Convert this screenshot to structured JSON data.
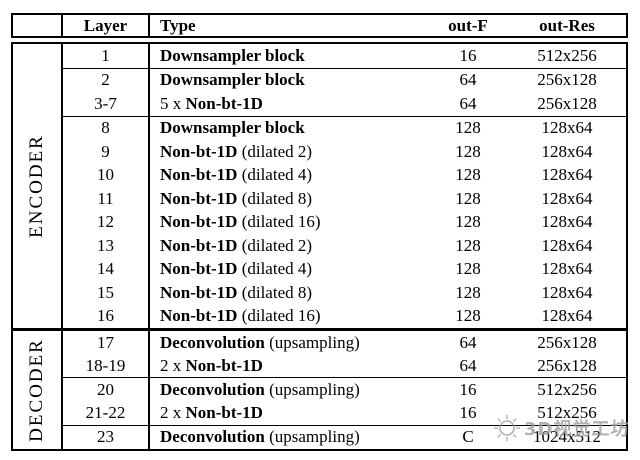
{
  "page": {
    "background": "#ffffff",
    "text_color": "#000000",
    "border_color": "#000000"
  },
  "watermark": {
    "icon": "sun-logo-icon",
    "text": "3D视觉工坊",
    "color": "#9e9e9e"
  },
  "table": {
    "header": {
      "corner": "",
      "layer": "Layer",
      "type": "Type",
      "out_f": "out-F",
      "out_res": "out-Res"
    },
    "sections": [
      {
        "label": "ENCODER",
        "rows": [
          {
            "layer": "1",
            "prefix": "",
            "name": "Downsampler block",
            "suffix": "",
            "out_f": "16",
            "out_res": "512x256",
            "separator_above": false
          },
          {
            "layer": "2",
            "prefix": "",
            "name": "Downsampler block",
            "suffix": "",
            "out_f": "64",
            "out_res": "256x128",
            "separator_above": true
          },
          {
            "layer": "3-7",
            "prefix": "5 x ",
            "name": "Non-bt-1D",
            "suffix": "",
            "out_f": "64",
            "out_res": "256x128",
            "separator_above": false
          },
          {
            "layer": "8",
            "prefix": "",
            "name": "Downsampler block",
            "suffix": "",
            "out_f": "128",
            "out_res": "128x64",
            "separator_above": true
          },
          {
            "layer": "9",
            "prefix": "",
            "name": "Non-bt-1D",
            "suffix": " (dilated 2)",
            "out_f": "128",
            "out_res": "128x64",
            "separator_above": false
          },
          {
            "layer": "10",
            "prefix": "",
            "name": "Non-bt-1D",
            "suffix": " (dilated 4)",
            "out_f": "128",
            "out_res": "128x64",
            "separator_above": false
          },
          {
            "layer": "11",
            "prefix": "",
            "name": "Non-bt-1D",
            "suffix": " (dilated 8)",
            "out_f": "128",
            "out_res": "128x64",
            "separator_above": false
          },
          {
            "layer": "12",
            "prefix": "",
            "name": "Non-bt-1D",
            "suffix": " (dilated 16)",
            "out_f": "128",
            "out_res": "128x64",
            "separator_above": false
          },
          {
            "layer": "13",
            "prefix": "",
            "name": "Non-bt-1D",
            "suffix": " (dilated 2)",
            "out_f": "128",
            "out_res": "128x64",
            "separator_above": false
          },
          {
            "layer": "14",
            "prefix": "",
            "name": "Non-bt-1D",
            "suffix": " (dilated 4)",
            "out_f": "128",
            "out_res": "128x64",
            "separator_above": false
          },
          {
            "layer": "15",
            "prefix": "",
            "name": "Non-bt-1D",
            "suffix": " (dilated 8)",
            "out_f": "128",
            "out_res": "128x64",
            "separator_above": false
          },
          {
            "layer": "16",
            "prefix": "",
            "name": "Non-bt-1D",
            "suffix": " (dilated 16)",
            "out_f": "128",
            "out_res": "128x64",
            "separator_above": false
          }
        ]
      },
      {
        "label": "DECODER",
        "rows": [
          {
            "layer": "17",
            "prefix": "",
            "name": "Deconvolution",
            "suffix": " (upsampling)",
            "out_f": "64",
            "out_res": "256x128",
            "separator_above": false
          },
          {
            "layer": "18-19",
            "prefix": "2 x ",
            "name": "Non-bt-1D",
            "suffix": "",
            "out_f": "64",
            "out_res": "256x128",
            "separator_above": false
          },
          {
            "layer": "20",
            "prefix": "",
            "name": "Deconvolution",
            "suffix": " (upsampling)",
            "out_f": "16",
            "out_res": "512x256",
            "separator_above": true
          },
          {
            "layer": "21-22",
            "prefix": "2 x ",
            "name": "Non-bt-1D",
            "suffix": "",
            "out_f": "16",
            "out_res": "512x256",
            "separator_above": false
          },
          {
            "layer": "23",
            "prefix": "",
            "name": "Deconvolution",
            "suffix": " (upsampling)",
            "out_f": "C",
            "out_res": "1024x512",
            "separator_above": true
          }
        ]
      }
    ]
  }
}
